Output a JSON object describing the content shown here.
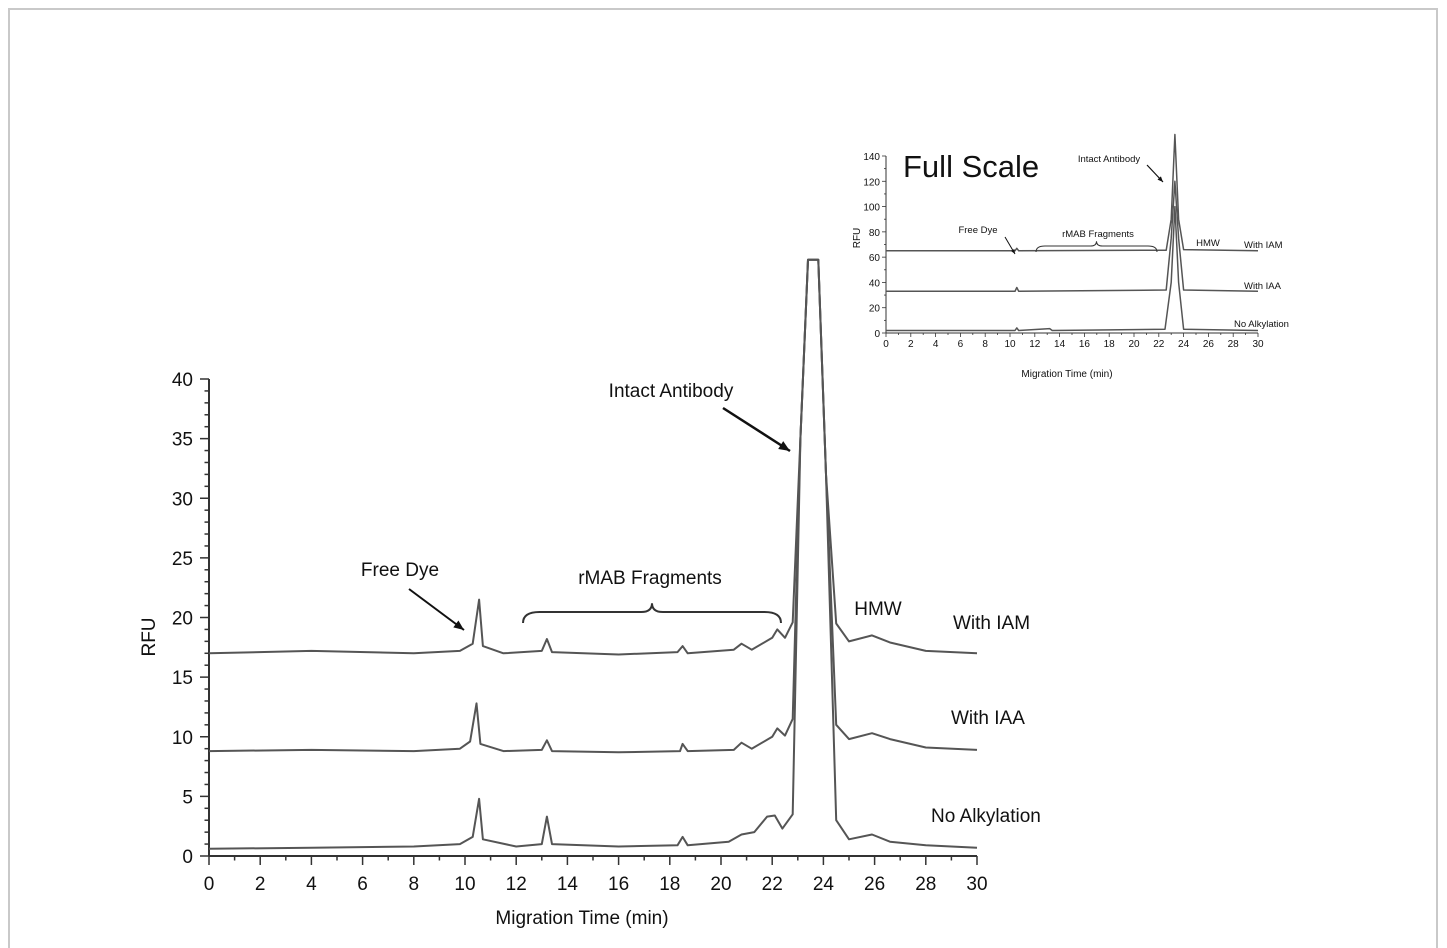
{
  "chart_data": [
    {
      "type": "line",
      "title": "",
      "xlabel": "Migration Time (min)",
      "ylabel": "RFU",
      "xlim": [
        0,
        30
      ],
      "ylim": [
        0,
        40
      ],
      "x_ticks": [
        "0",
        "2",
        "4",
        "6",
        "8",
        "10",
        "12",
        "14",
        "16",
        "18",
        "20",
        "22",
        "24",
        "26",
        "28",
        "30"
      ],
      "y_ticks": [
        "0",
        "5",
        "10",
        "15",
        "20",
        "25",
        "30",
        "35",
        "40"
      ],
      "series": [
        {
          "name": "With IAM",
          "baseline": 17.0,
          "points": [
            [
              0,
              17
            ],
            [
              4,
              17.2
            ],
            [
              8,
              17
            ],
            [
              9.8,
              17.2
            ],
            [
              10.3,
              17.8
            ],
            [
              10.55,
              21.5
            ],
            [
              10.7,
              17.6
            ],
            [
              11.5,
              17
            ],
            [
              13,
              17.2
            ],
            [
              13.2,
              18.2
            ],
            [
              13.4,
              17.1
            ],
            [
              16,
              16.9
            ],
            [
              18.3,
              17.1
            ],
            [
              18.5,
              17.6
            ],
            [
              18.7,
              17
            ],
            [
              20.5,
              17.3
            ],
            [
              20.8,
              17.8
            ],
            [
              21.2,
              17.3
            ],
            [
              22,
              18.3
            ],
            [
              22.2,
              19
            ],
            [
              22.5,
              18.3
            ],
            [
              22.8,
              19.6
            ],
            [
              23.1,
              35
            ],
            [
              23.4,
              50
            ],
            [
              23.8,
              50
            ],
            [
              24.1,
              32
            ],
            [
              24.5,
              19.5
            ],
            [
              25,
              18
            ],
            [
              25.9,
              18.5
            ],
            [
              26.6,
              17.9
            ],
            [
              28,
              17.2
            ],
            [
              30,
              17
            ]
          ]
        },
        {
          "name": "With IAA",
          "baseline": 8.8,
          "points": [
            [
              0,
              8.8
            ],
            [
              4,
              8.9
            ],
            [
              8,
              8.8
            ],
            [
              9.8,
              9
            ],
            [
              10.2,
              9.6
            ],
            [
              10.45,
              12.8
            ],
            [
              10.6,
              9.4
            ],
            [
              11.5,
              8.8
            ],
            [
              13,
              8.9
            ],
            [
              13.2,
              9.7
            ],
            [
              13.4,
              8.8
            ],
            [
              16,
              8.7
            ],
            [
              18.4,
              8.8
            ],
            [
              18.5,
              9.4
            ],
            [
              18.7,
              8.8
            ],
            [
              20.5,
              8.9
            ],
            [
              20.8,
              9.5
            ],
            [
              21.2,
              9
            ],
            [
              22,
              10
            ],
            [
              22.2,
              10.7
            ],
            [
              22.5,
              10.1
            ],
            [
              22.8,
              11.5
            ],
            [
              23.1,
              35
            ],
            [
              23.4,
              50
            ],
            [
              23.8,
              50
            ],
            [
              24.1,
              32
            ],
            [
              24.5,
              11
            ],
            [
              25,
              9.8
            ],
            [
              25.9,
              10.3
            ],
            [
              26.6,
              9.8
            ],
            [
              28,
              9.1
            ],
            [
              30,
              8.9
            ]
          ]
        },
        {
          "name": "No Alkylation",
          "baseline": 0.6,
          "points": [
            [
              0,
              0.6
            ],
            [
              4,
              0.7
            ],
            [
              8,
              0.8
            ],
            [
              9.8,
              1
            ],
            [
              10.3,
              1.6
            ],
            [
              10.55,
              4.8
            ],
            [
              10.7,
              1.4
            ],
            [
              12,
              0.8
            ],
            [
              13,
              1
            ],
            [
              13.2,
              3.3
            ],
            [
              13.4,
              1
            ],
            [
              16,
              0.8
            ],
            [
              18.3,
              0.9
            ],
            [
              18.5,
              1.6
            ],
            [
              18.7,
              0.9
            ],
            [
              20.3,
              1.2
            ],
            [
              20.8,
              1.8
            ],
            [
              21.3,
              2
            ],
            [
              21.8,
              3.3
            ],
            [
              22.1,
              3.4
            ],
            [
              22.4,
              2.3
            ],
            [
              22.8,
              3.5
            ],
            [
              23.1,
              35
            ],
            [
              23.4,
              50
            ],
            [
              23.8,
              50
            ],
            [
              24.1,
              32
            ],
            [
              24.5,
              3
            ],
            [
              25,
              1.4
            ],
            [
              25.9,
              1.8
            ],
            [
              26.6,
              1.2
            ],
            [
              28,
              0.9
            ],
            [
              30,
              0.7
            ]
          ]
        }
      ],
      "annotations": {
        "free_dye": "Free Dye",
        "fragments": "rMAB Fragments",
        "intact": "Intact Antibody",
        "hmw": "HMW"
      }
    },
    {
      "type": "line",
      "title": "Full Scale",
      "xlabel": "Migration Time (min)",
      "ylabel": "RFU",
      "xlim": [
        0,
        30
      ],
      "ylim": [
        0,
        140
      ],
      "x_ticks": [
        "0",
        "2",
        "4",
        "6",
        "8",
        "10",
        "12",
        "14",
        "16",
        "18",
        "20",
        "22",
        "24",
        "26",
        "28",
        "30"
      ],
      "y_ticks": [
        "0",
        "20",
        "40",
        "60",
        "80",
        "100",
        "120",
        "140"
      ],
      "series": [
        {
          "name": "With IAM",
          "baseline": 65,
          "points": [
            [
              0,
              65
            ],
            [
              10.4,
              65
            ],
            [
              10.55,
              67
            ],
            [
              10.7,
              65
            ],
            [
              22.6,
              65.5
            ],
            [
              23.0,
              90
            ],
            [
              23.3,
              157
            ],
            [
              23.6,
              90
            ],
            [
              24.0,
              66
            ],
            [
              30,
              65
            ]
          ]
        },
        {
          "name": "With IAA",
          "baseline": 33,
          "points": [
            [
              0,
              33
            ],
            [
              10.4,
              33
            ],
            [
              10.55,
              36
            ],
            [
              10.7,
              33
            ],
            [
              22.6,
              34
            ],
            [
              23.0,
              75
            ],
            [
              23.3,
              120
            ],
            [
              23.6,
              75
            ],
            [
              24.0,
              34
            ],
            [
              30,
              33
            ]
          ]
        },
        {
          "name": "No Alkylation",
          "baseline": 2,
          "points": [
            [
              0,
              2
            ],
            [
              10.4,
              2
            ],
            [
              10.55,
              4
            ],
            [
              10.7,
              2
            ],
            [
              13.2,
              3.5
            ],
            [
              13.4,
              2
            ],
            [
              22.5,
              3
            ],
            [
              23.0,
              40
            ],
            [
              23.3,
              100
            ],
            [
              23.6,
              40
            ],
            [
              24.0,
              3
            ],
            [
              30,
              2
            ]
          ]
        }
      ],
      "annotations": {
        "free_dye": "Free Dye",
        "fragments": "rMAB Fragments",
        "intact": "Intact Antibody",
        "hmw": "HMW"
      }
    }
  ]
}
